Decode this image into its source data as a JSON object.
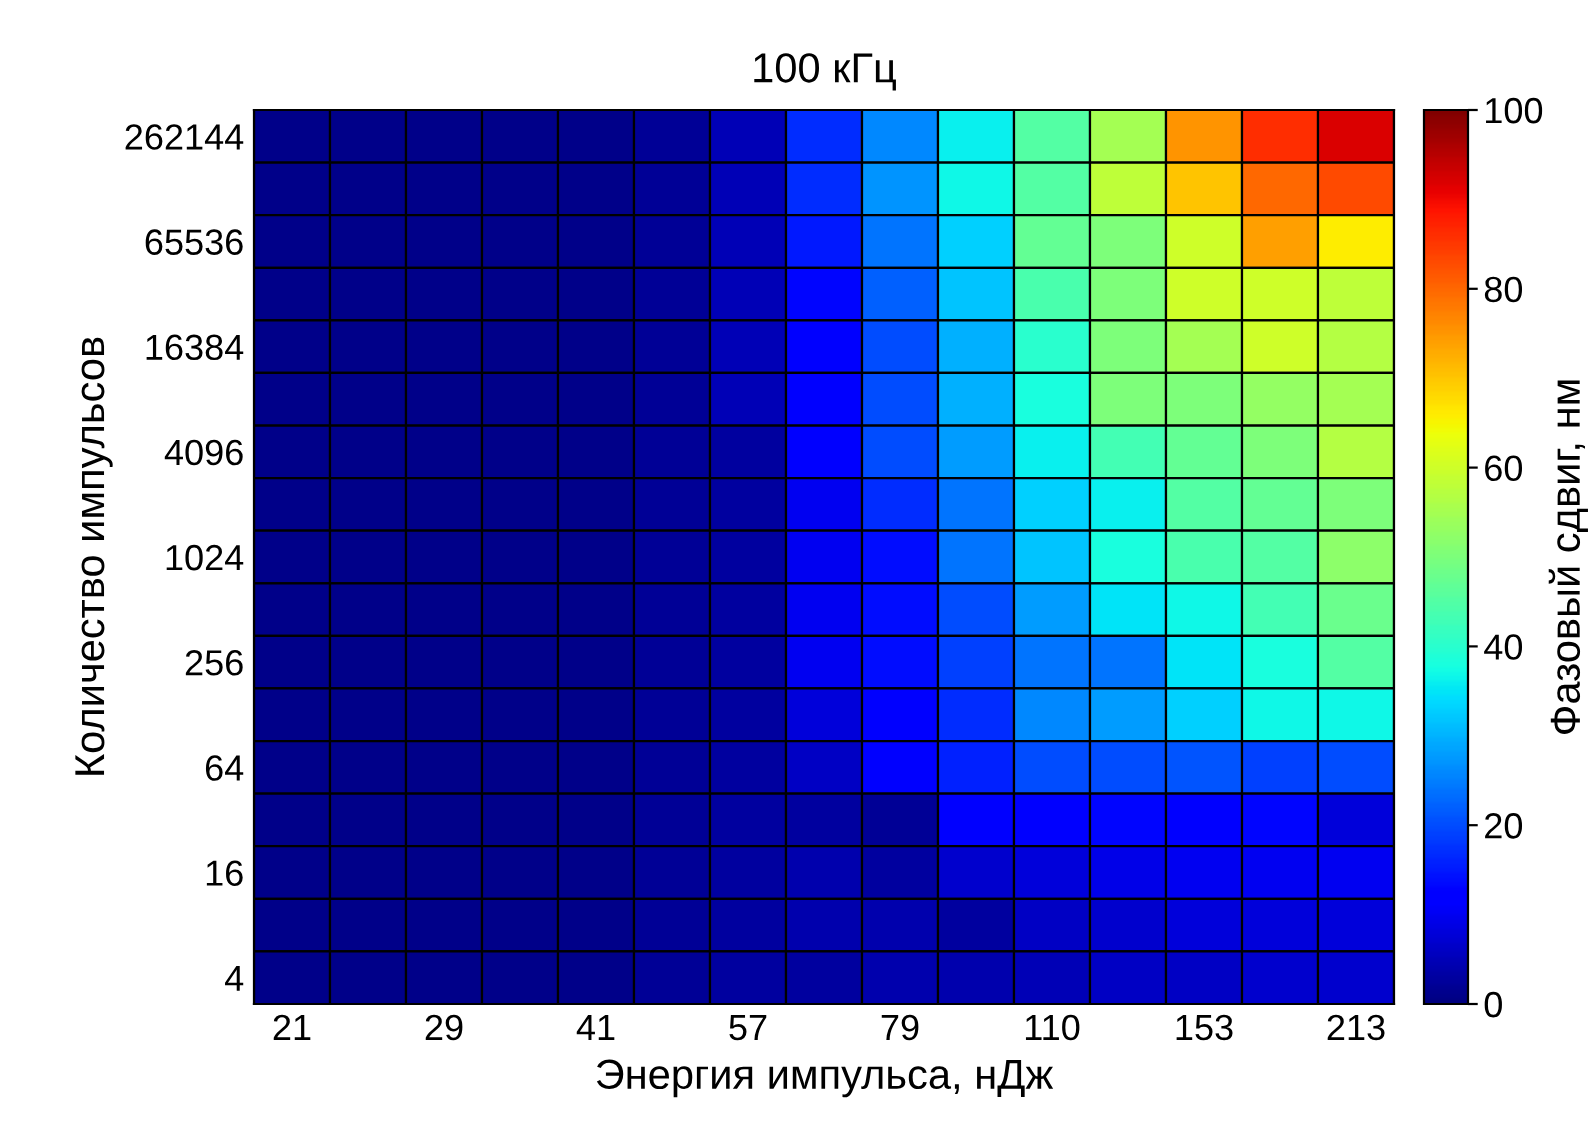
{
  "chart_data": {
    "type": "heatmap",
    "title": "100 кГц",
    "xlabel": "Энергия импульса, нДж",
    "ylabel": "Количество импульсов",
    "clabel": "Фазовый сдвиг, нм",
    "categories": [
      "21",
      null,
      "29",
      null,
      "41",
      null,
      "57",
      null,
      "79",
      null,
      "110",
      null,
      "153",
      null,
      "213"
    ],
    "y_categories": [
      "262144",
      null,
      "65536",
      null,
      "16384",
      null,
      "4096",
      null,
      "1024",
      null,
      "256",
      null,
      "64",
      null,
      "16",
      null,
      "4"
    ],
    "cells": [
      [
        1,
        1,
        1,
        1,
        1,
        2,
        5,
        17,
        26,
        36,
        45,
        55,
        75,
        86,
        92
      ],
      [
        1,
        1,
        1,
        1,
        1,
        2,
        5,
        17,
        27,
        37,
        45,
        58,
        70,
        80,
        83
      ],
      [
        1,
        1,
        1,
        1,
        1,
        2,
        5,
        15,
        24,
        33,
        47,
        50,
        60,
        74,
        66
      ],
      [
        1,
        1,
        1,
        1,
        1,
        2,
        5,
        13,
        22,
        32,
        44,
        50,
        60,
        60,
        58
      ],
      [
        1,
        1,
        1,
        1,
        1,
        2,
        5,
        12,
        20,
        30,
        40,
        50,
        55,
        60,
        57
      ],
      [
        1,
        1,
        1,
        1,
        1,
        2,
        5,
        12,
        20,
        30,
        38,
        50,
        50,
        53,
        55
      ],
      [
        1,
        1,
        1,
        1,
        1,
        2,
        3,
        11,
        20,
        28,
        36,
        43,
        47,
        50,
        57
      ],
      [
        1,
        1,
        1,
        1,
        1,
        2,
        3,
        10,
        17,
        24,
        33,
        36,
        45,
        47,
        50
      ],
      [
        1,
        1,
        1,
        1,
        1,
        2,
        3,
        10,
        14,
        24,
        32,
        38,
        44,
        45,
        52
      ],
      [
        1,
        1,
        1,
        1,
        1,
        2,
        3,
        10,
        14,
        20,
        28,
        35,
        37,
        43,
        48
      ],
      [
        1,
        1,
        1,
        1,
        1,
        2,
        3,
        10,
        14,
        19,
        24,
        24,
        35,
        38,
        45
      ],
      [
        1,
        1,
        1,
        1,
        1,
        2,
        3,
        8,
        12,
        17,
        26,
        28,
        33,
        37,
        37
      ],
      [
        1,
        1,
        1,
        1,
        1,
        2,
        3,
        6,
        12,
        16,
        20,
        20,
        21,
        19,
        20
      ],
      [
        1,
        1,
        1,
        1,
        1,
        2,
        3,
        3,
        2,
        11,
        12,
        13,
        12,
        13,
        8
      ],
      [
        1,
        1,
        1,
        1,
        1,
        2,
        3,
        4,
        3,
        7,
        8,
        9,
        10,
        10,
        10
      ],
      [
        1,
        1,
        1,
        1,
        1,
        2,
        3,
        4,
        4,
        3,
        6,
        7,
        8,
        8,
        8
      ],
      [
        1,
        1,
        1,
        1,
        1,
        2,
        3,
        3,
        4,
        4,
        5,
        6,
        6,
        7,
        7
      ]
    ],
    "clim": [
      0,
      100
    ],
    "cticks": [
      0,
      20,
      40,
      60,
      80,
      100
    ]
  }
}
